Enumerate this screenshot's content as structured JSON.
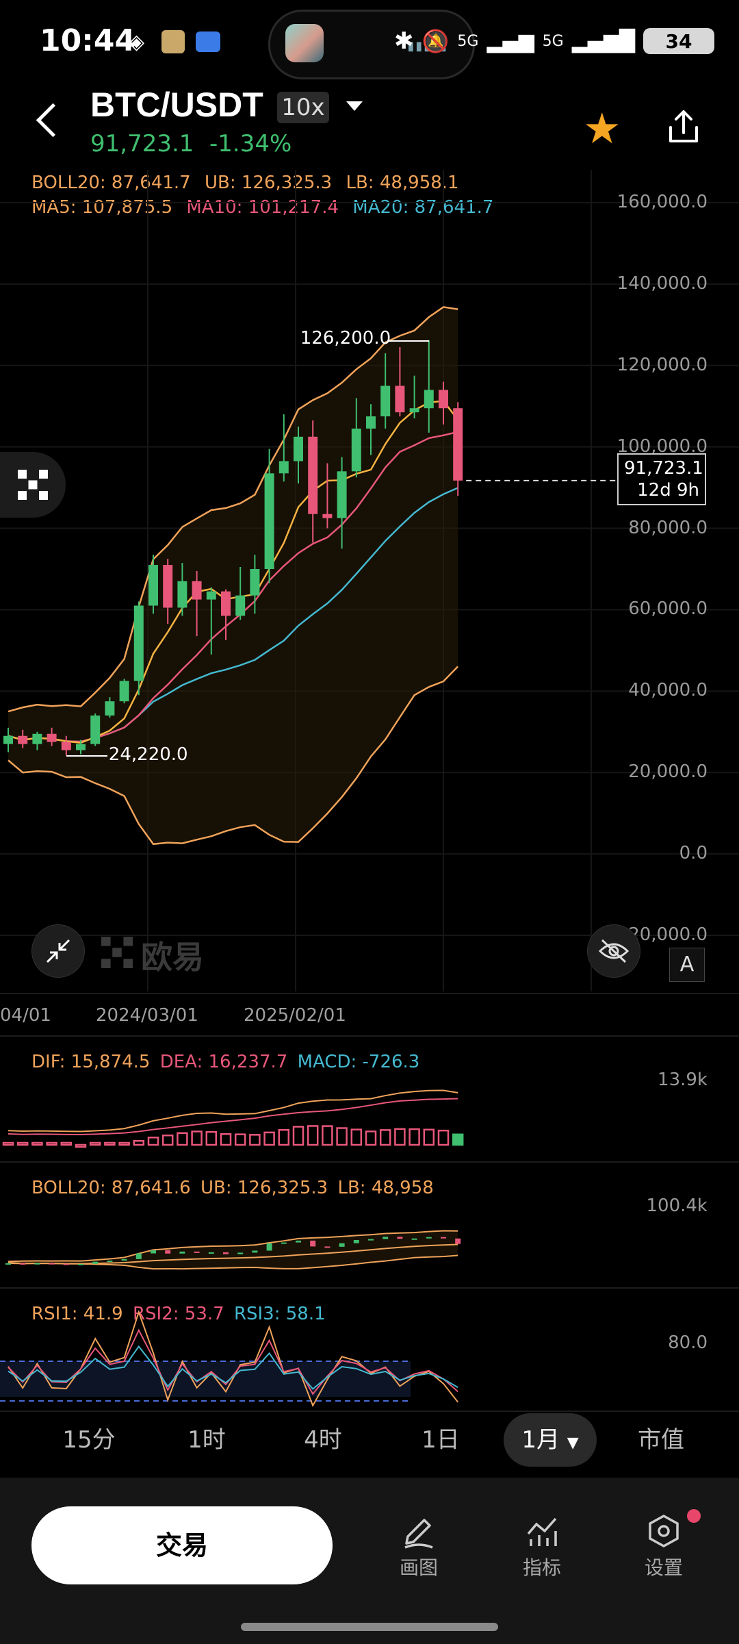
{
  "status_bar": {
    "time": "10:44",
    "network": "5G",
    "network2": "5G",
    "battery": "34"
  },
  "header": {
    "pair": "BTC/USDT",
    "leverage": "10x",
    "last_price": "91,723.1",
    "change": "-1.34%"
  },
  "indicators": {
    "boll": "BOLL20: 87,641.7",
    "ub": "UB: 126,325.3",
    "lb": "LB: 48,958.1",
    "ma5": "MA5: 107,875.5",
    "ma10": "MA10: 101,217.4",
    "ma20": "MA20: 87,641.7"
  },
  "price_axis": [
    "160,000.0",
    "140,000.0",
    "120,000.0",
    "100,000.0",
    "80,000.0",
    "60,000.0",
    "40,000.0",
    "20,000.0",
    "0.0",
    "-20,000.0"
  ],
  "price_tag": {
    "price": "91,723.1",
    "countdown": "12d 9h"
  },
  "annotations": {
    "high": "126,200.0",
    "low": "24,220.0"
  },
  "watermark": "欧易",
  "auto_button": "A",
  "date_axis": [
    "04/01",
    "2024/03/01",
    "2025/02/01"
  ],
  "macd": {
    "dif": "DIF: 15,874.5",
    "dea": "DEA: 16,237.7",
    "macd": "MACD: -726.3",
    "axis": "13.9k"
  },
  "boll2": {
    "boll": "BOLL20: 87,641.6",
    "ub": "UB: 126,325.3",
    "lb": "LB: 48,958",
    "axis": "100.4k"
  },
  "rsi": {
    "rsi1": "RSI1: 41.9",
    "rsi2": "RSI2: 53.7",
    "rsi3": "RSI3: 58.1",
    "axis": "80.0"
  },
  "timeframes": [
    "15分",
    "1时",
    "4时",
    "1日",
    "1月",
    "市值"
  ],
  "active_timeframe": "1月",
  "bottom": {
    "trade": "交易",
    "draw": "画图",
    "indicators": "指标",
    "settings": "设置"
  },
  "colors": {
    "up": "#3fbf6f",
    "down": "#e8577a",
    "accent": "#f5a623",
    "boll": "#f0a35a",
    "ma_cyan": "#44b9d0"
  },
  "chart_data": {
    "type": "candlestick",
    "xlabel": "",
    "ylabel": "",
    "ylim": [
      -20000,
      160000
    ],
    "high_annotation": 126200.0,
    "low_annotation": 24220.0,
    "last_price": 91723.1,
    "candles": [
      {
        "o": 27000,
        "h": 31000,
        "l": 25000,
        "c": 29000
      },
      {
        "o": 29000,
        "h": 30500,
        "l": 26000,
        "c": 27000
      },
      {
        "o": 27000,
        "h": 30000,
        "l": 25500,
        "c": 29500
      },
      {
        "o": 29500,
        "h": 31000,
        "l": 26500,
        "c": 27500
      },
      {
        "o": 27500,
        "h": 29000,
        "l": 24220,
        "c": 25500
      },
      {
        "o": 25500,
        "h": 28000,
        "l": 24500,
        "c": 27000
      },
      {
        "o": 27000,
        "h": 34500,
        "l": 26500,
        "c": 34000
      },
      {
        "o": 34000,
        "h": 38500,
        "l": 33500,
        "c": 37500
      },
      {
        "o": 37500,
        "h": 43000,
        "l": 37000,
        "c": 42500
      },
      {
        "o": 42500,
        "h": 62000,
        "l": 39000,
        "c": 61000
      },
      {
        "o": 61000,
        "h": 73500,
        "l": 59000,
        "c": 71000
      },
      {
        "o": 71000,
        "h": 72500,
        "l": 56500,
        "c": 60500
      },
      {
        "o": 60500,
        "h": 71500,
        "l": 58500,
        "c": 67000
      },
      {
        "o": 67000,
        "h": 69500,
        "l": 53500,
        "c": 62500
      },
      {
        "o": 62500,
        "h": 65500,
        "l": 49000,
        "c": 64500
      },
      {
        "o": 64500,
        "h": 65000,
        "l": 52500,
        "c": 58500
      },
      {
        "o": 58500,
        "h": 70500,
        "l": 57500,
        "c": 63500
      },
      {
        "o": 63500,
        "h": 73500,
        "l": 59000,
        "c": 70000
      },
      {
        "o": 70000,
        "h": 99500,
        "l": 66500,
        "c": 93500
      },
      {
        "o": 93500,
        "h": 108000,
        "l": 91500,
        "c": 96500
      },
      {
        "o": 96500,
        "h": 105000,
        "l": 91000,
        "c": 102500
      },
      {
        "o": 102500,
        "h": 106500,
        "l": 76500,
        "c": 83500
      },
      {
        "o": 83500,
        "h": 96000,
        "l": 80000,
        "c": 82500
      },
      {
        "o": 82500,
        "h": 97500,
        "l": 75000,
        "c": 94000
      },
      {
        "o": 94000,
        "h": 112000,
        "l": 92500,
        "c": 104500
      },
      {
        "o": 104500,
        "h": 110500,
        "l": 98000,
        "c": 107500
      },
      {
        "o": 107500,
        "h": 123000,
        "l": 104500,
        "c": 115000
      },
      {
        "o": 115000,
        "h": 124500,
        "l": 107500,
        "c": 108500
      },
      {
        "o": 108500,
        "h": 117500,
        "l": 107000,
        "c": 109500
      },
      {
        "o": 109500,
        "h": 126200,
        "l": 103500,
        "c": 114000
      },
      {
        "o": 114000,
        "h": 116000,
        "l": 105500,
        "c": 109500
      },
      {
        "o": 109500,
        "h": 111000,
        "l": 88000,
        "c": 91723.1
      }
    ]
  }
}
